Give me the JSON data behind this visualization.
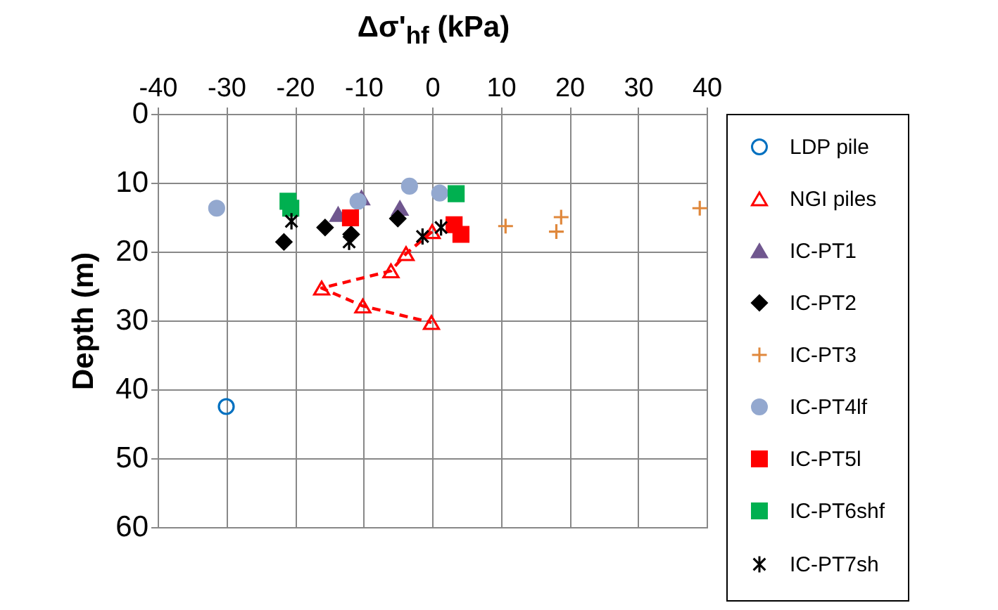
{
  "chart_data": {
    "type": "scatter",
    "xlabel": "Δσ'$_{hf}$ (kPa)",
    "ylabel": "Depth (m)",
    "xlim": [
      -40,
      40
    ],
    "xticks": [
      -40,
      -30,
      -20,
      -10,
      0,
      10,
      20,
      30,
      40
    ],
    "ylim": [
      60,
      0
    ],
    "yticks": [
      0,
      10,
      20,
      30,
      40,
      50,
      60
    ],
    "grid": true,
    "legend": "right",
    "series": [
      {
        "name": "LDP pile",
        "type": "line",
        "marker": "circle",
        "line_style": "dashed",
        "color": "#0070c0",
        "x": [
          -30
        ],
        "values": [
          42.5
        ]
      },
      {
        "name": "NGI piles",
        "type": "line",
        "marker": "triangle",
        "line_style": "dashed",
        "color": "#ff0000",
        "x": [
          0,
          -3.8,
          -6,
          -16.1,
          -10.1,
          -0.1
        ],
        "values": [
          17.1,
          20.3,
          22.8,
          25.3,
          27.9,
          30.3
        ]
      },
      {
        "name": "IC-PT1",
        "type": "scatter",
        "marker": "triangle",
        "color": "#70578f",
        "x": [
          -13.7,
          -10.3,
          -4.7
        ],
        "values": [
          14.6,
          12.2,
          13.7
        ]
      },
      {
        "name": "IC-PT2",
        "type": "scatter",
        "marker": "diamond",
        "color": "#000000",
        "x": [
          -21.6,
          -15.6,
          -11.8,
          -5
        ],
        "values": [
          18.6,
          16.5,
          17.5,
          15.2
        ]
      },
      {
        "name": "IC-PT3",
        "type": "scatter",
        "marker": "cross",
        "color": "#e0883c",
        "x": [
          10.7,
          18.8,
          18.1,
          39
        ],
        "values": [
          16.3,
          15,
          17.1,
          13.7
        ]
      },
      {
        "name": "IC-PT4lf",
        "type": "scatter",
        "marker": "circle",
        "color": "#93a8cf",
        "x": [
          -31.4,
          -10.8,
          -3.3,
          1.1
        ],
        "values": [
          13.7,
          12.7,
          10.5,
          11.5
        ]
      },
      {
        "name": "IC-PT5l",
        "type": "scatter",
        "marker": "square",
        "color": "#ff0000",
        "x": [
          -11.9,
          3.2,
          4.2
        ],
        "values": [
          15.1,
          16.1,
          17.5
        ]
      },
      {
        "name": "IC-PT6shf",
        "type": "scatter",
        "marker": "square",
        "color": "#00b050",
        "x": [
          -21,
          -20.6,
          3.5
        ],
        "values": [
          12.7,
          13.7,
          11.6
        ]
      },
      {
        "name": "IC-PT7sh",
        "type": "scatter",
        "color": "#000000",
        "x": [
          -20.5,
          -12.1,
          -1.4,
          1.3
        ],
        "values": [
          15.6,
          18.6,
          17.8,
          16.5
        ]
      }
    ]
  }
}
